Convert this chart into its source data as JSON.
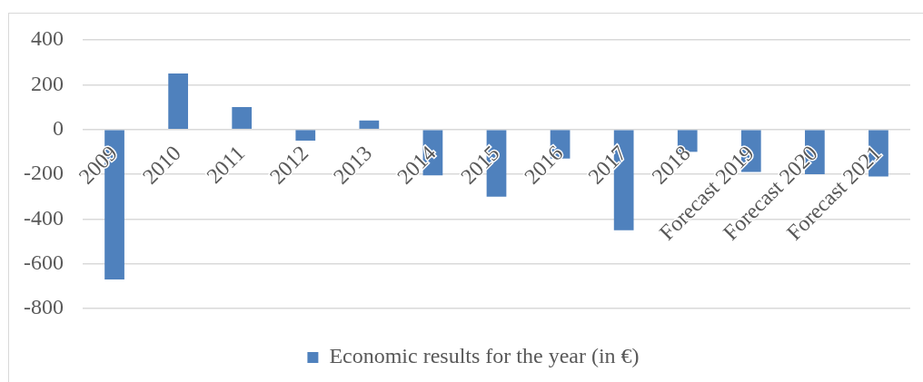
{
  "chart_data": {
    "type": "bar",
    "categories": [
      "2009",
      "2010",
      "2011",
      "2012",
      "2013",
      "2014",
      "2015",
      "2016",
      "2017",
      "2018",
      "Forecast 2019",
      "Forecast 2020",
      "Forecast 2021"
    ],
    "series": [
      {
        "name": "Economic results for the year (in €)",
        "color": "#4f81bd",
        "values": [
          -670,
          250,
          100,
          -50,
          40,
          -205,
          -300,
          -130,
          -450,
          -100,
          -190,
          -200,
          -210
        ]
      }
    ],
    "ylim": [
      -800,
      400
    ],
    "yticks": [
      -800,
      -600,
      -400,
      -200,
      0,
      200,
      400
    ],
    "grid": "y",
    "legend": "bottom"
  }
}
